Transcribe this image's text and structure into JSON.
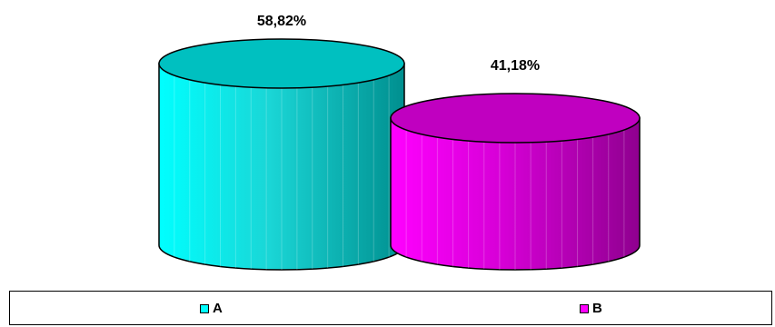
{
  "chart_data": {
    "type": "bar",
    "style": "3d-cylinder",
    "categories": [
      "A",
      "B"
    ],
    "values": [
      58.82,
      41.18
    ],
    "data_labels": [
      "58,82%",
      "41,18%"
    ],
    "colors": {
      "A": "#00ffff",
      "B": "#ff00ff"
    },
    "legend": {
      "position": "bottom",
      "entries": [
        "A",
        "B"
      ]
    },
    "grid": false
  }
}
